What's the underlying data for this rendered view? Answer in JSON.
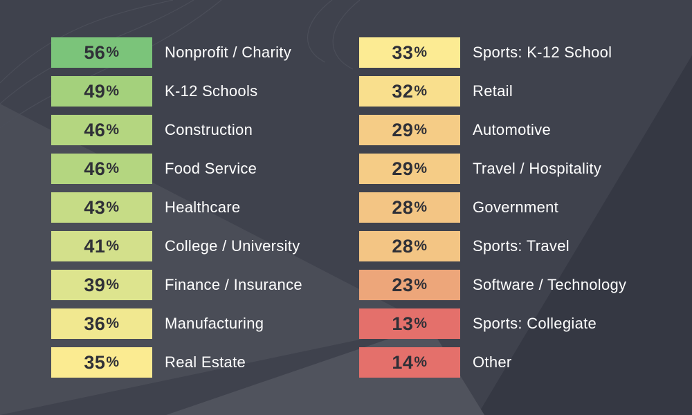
{
  "chart_data": {
    "type": "table",
    "unit_suffix": "%",
    "columns": [
      {
        "rows": [
          {
            "value": 56,
            "category": "Nonprofit / Charity",
            "color": "#7bc47a"
          },
          {
            "value": 49,
            "category": "K-12 Schools",
            "color": "#a4d17c"
          },
          {
            "value": 46,
            "category": "Construction",
            "color": "#b4d680"
          },
          {
            "value": 46,
            "category": "Food Service",
            "color": "#b4d680"
          },
          {
            "value": 43,
            "category": "Healthcare",
            "color": "#c6dc86"
          },
          {
            "value": 41,
            "category": "College / University",
            "color": "#d3e08b"
          },
          {
            "value": 39,
            "category": "Finance / Insurance",
            "color": "#dde48e"
          },
          {
            "value": 36,
            "category": "Manufacturing",
            "color": "#f1e890"
          },
          {
            "value": 35,
            "category": "Real Estate",
            "color": "#fbeb91"
          }
        ]
      },
      {
        "rows": [
          {
            "value": 33,
            "category": "Sports: K-12 School",
            "color": "#fceb93"
          },
          {
            "value": 32,
            "category": "Retail",
            "color": "#f9df8d"
          },
          {
            "value": 29,
            "category": "Automotive",
            "color": "#f5cc86"
          },
          {
            "value": 29,
            "category": "Travel / Hospitality",
            "color": "#f5cc86"
          },
          {
            "value": 28,
            "category": "Government",
            "color": "#f3c584"
          },
          {
            "value": 28,
            "category": "Sports: Travel",
            "color": "#f3c584"
          },
          {
            "value": 23,
            "category": "Software / Technology",
            "color": "#eda67a"
          },
          {
            "value": 13,
            "category": "Sports: Collegiate",
            "color": "#e4706b"
          },
          {
            "value": 14,
            "category": "Other",
            "color": "#e4706b"
          }
        ]
      }
    ]
  }
}
